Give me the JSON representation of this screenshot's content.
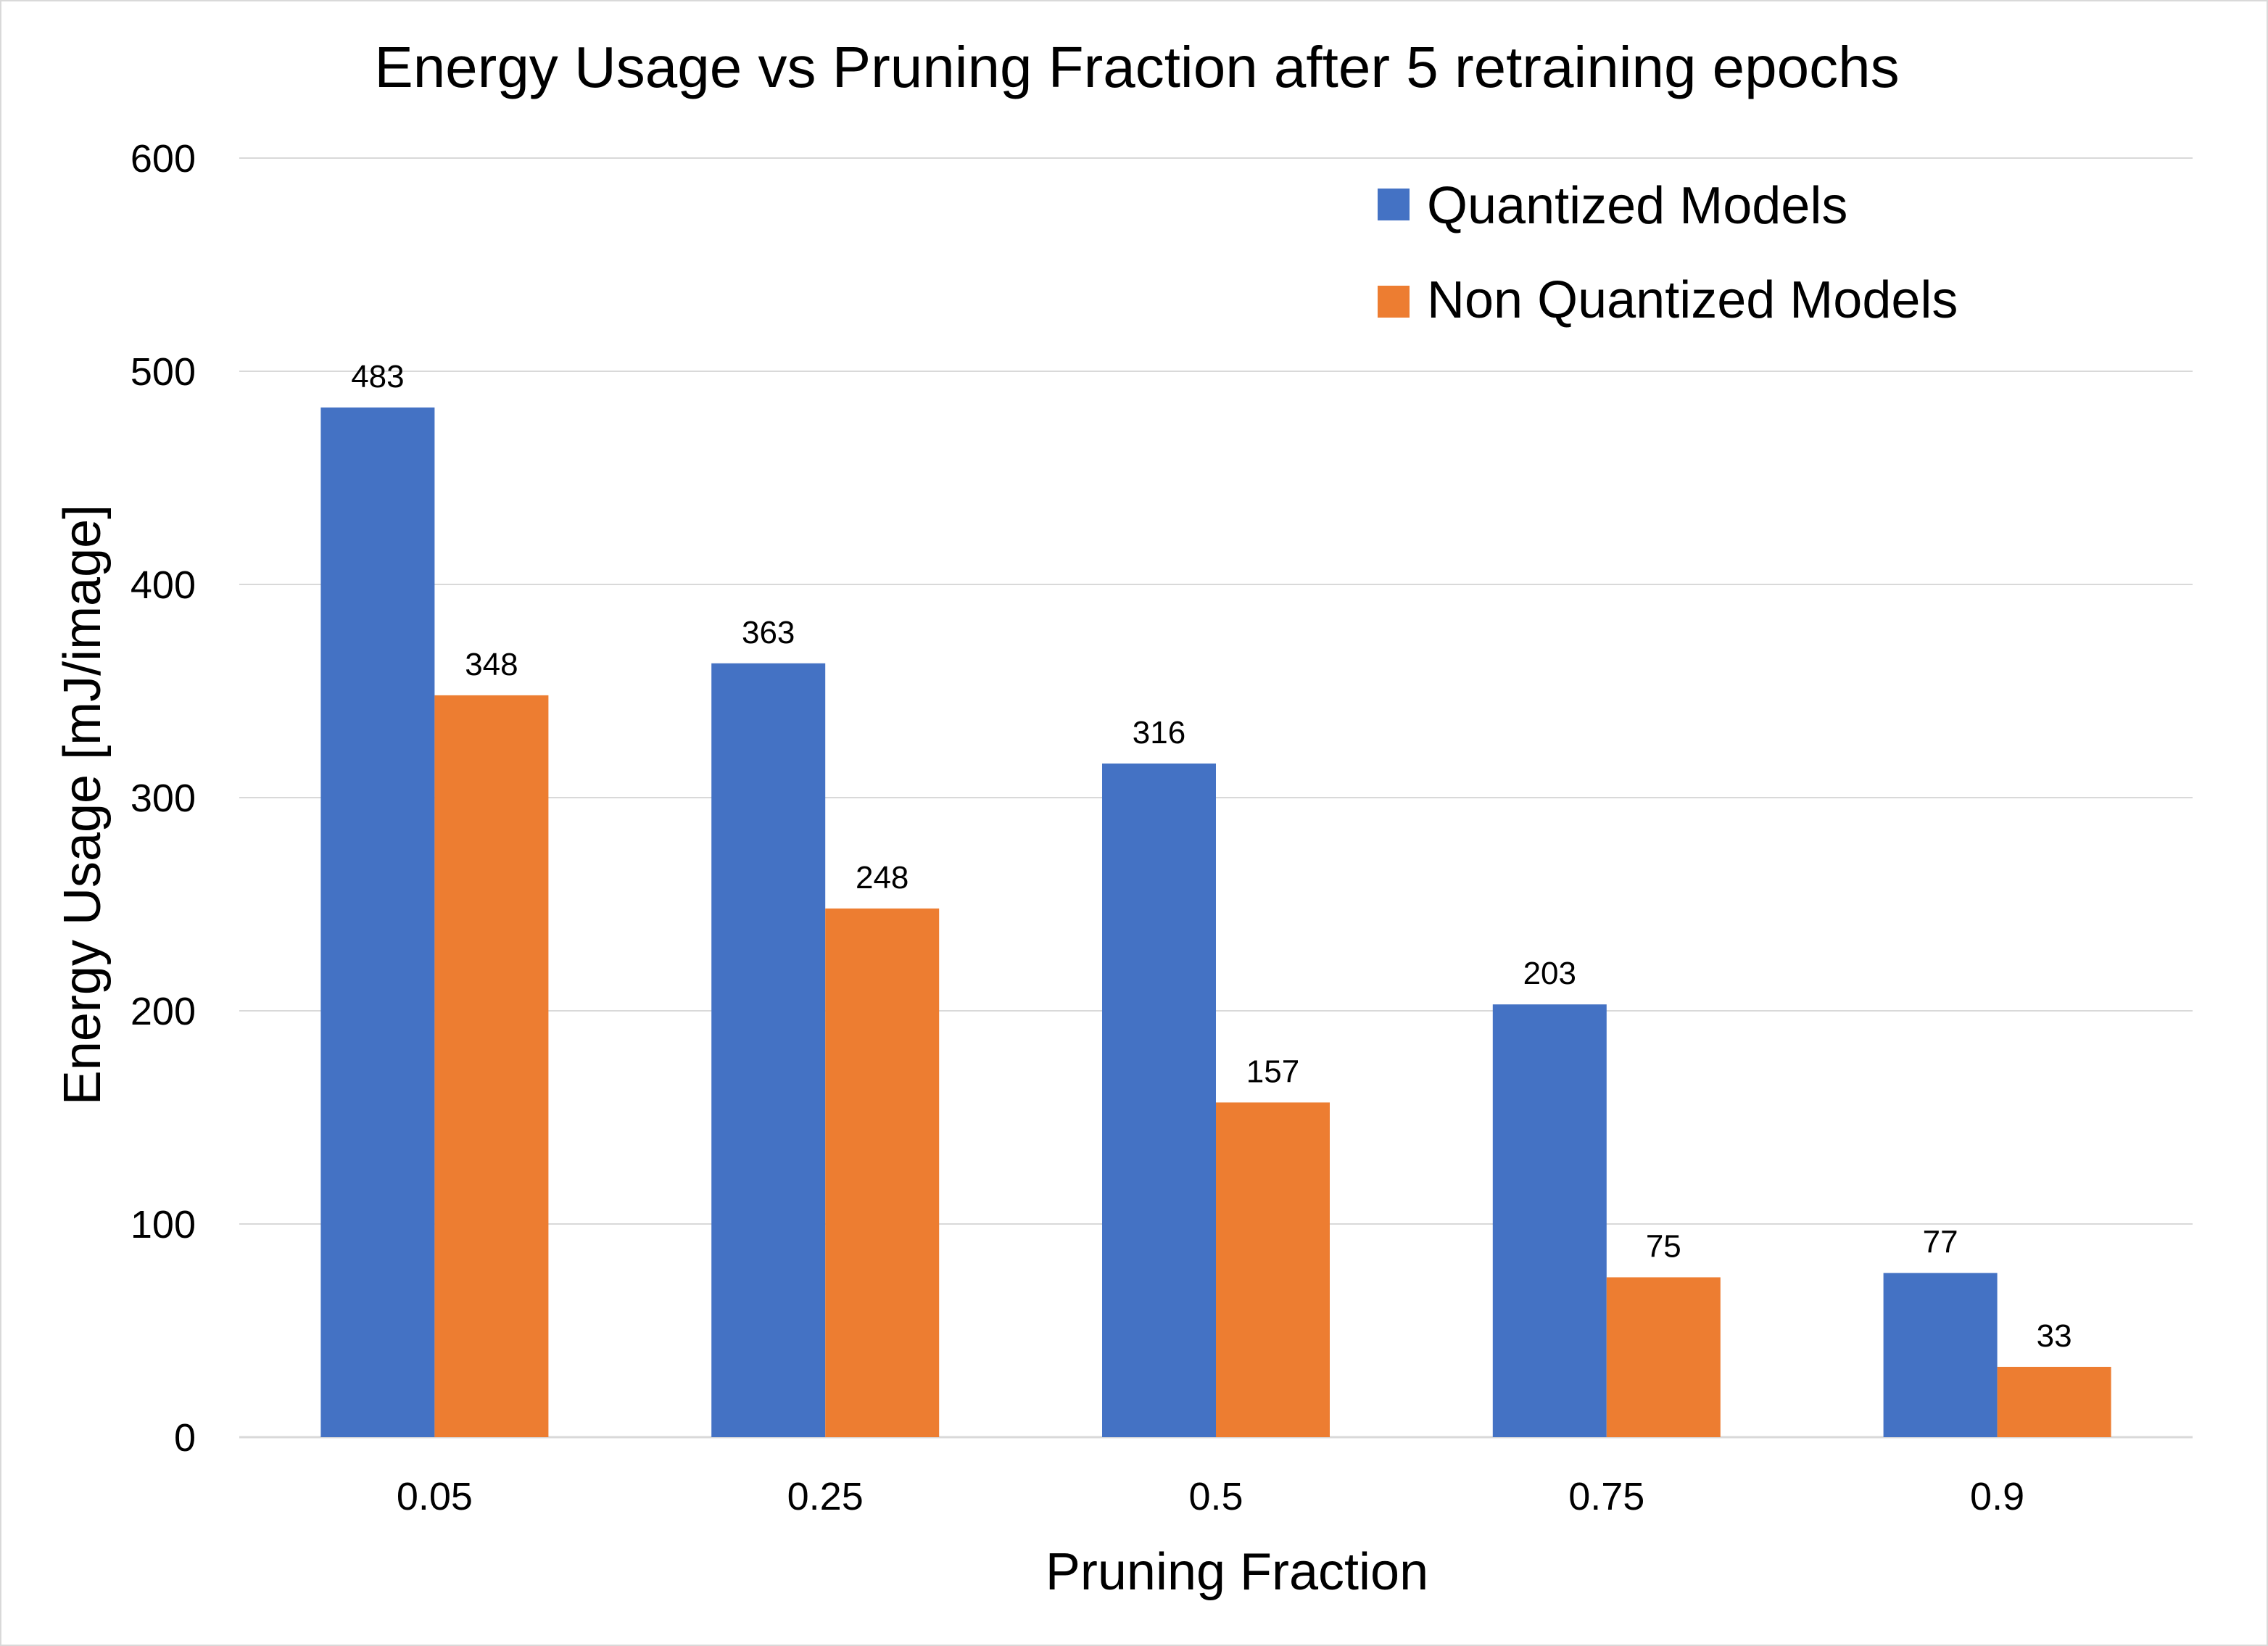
{
  "chart_data": {
    "type": "bar",
    "title": "Energy Usage vs Pruning Fraction after 5 retraining epochs",
    "xlabel": "Pruning Fraction",
    "ylabel": "Energy Usage [mJ/image]",
    "categories": [
      "0.05",
      "0.25",
      "0.5",
      "0.75",
      "0.9"
    ],
    "series": [
      {
        "name": "Quantized Models",
        "color": "#4472c4",
        "values": [
          483,
          363,
          316,
          203,
          77
        ]
      },
      {
        "name": "Non Quantized Models",
        "color": "#ed7d31",
        "values": [
          348,
          248,
          157,
          75,
          33
        ]
      }
    ],
    "ylim": [
      0,
      600
    ],
    "yticks": [
      0,
      100,
      200,
      300,
      400,
      500,
      600
    ],
    "grid": true,
    "legend_position": "top-right",
    "data_labels": true
  }
}
